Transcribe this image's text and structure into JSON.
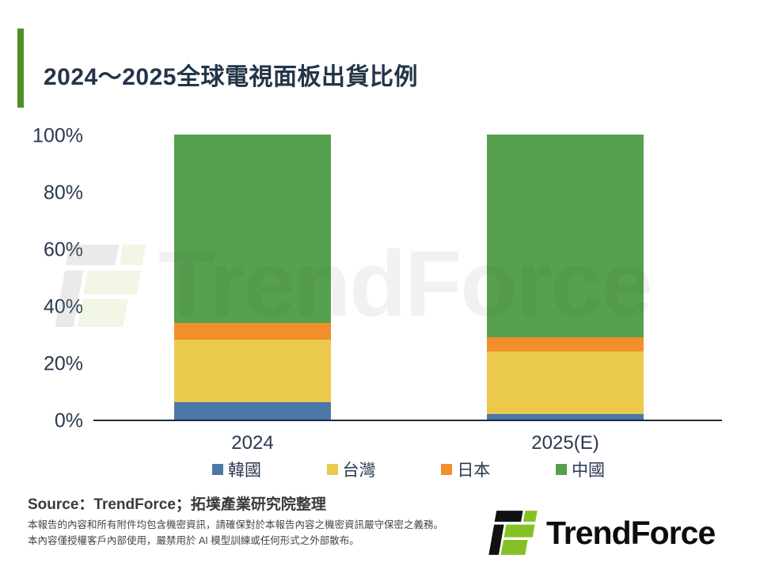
{
  "title": "2024～2025全球電視面板出貨比例",
  "chart_data": {
    "type": "bar",
    "stacked": true,
    "title": "2024～2025全球電視面板出貨比例",
    "categories": [
      "2024",
      "2025(E)"
    ],
    "series": [
      {
        "name": "韓國",
        "color": "#4C77A8",
        "values": [
          6,
          2
        ]
      },
      {
        "name": "台灣",
        "color": "#EBC94D",
        "values": [
          22,
          22
        ]
      },
      {
        "name": "日本",
        "color": "#F28E2B",
        "values": [
          6,
          5
        ]
      },
      {
        "name": "中國",
        "color": "#55A14E",
        "values": [
          66,
          71
        ]
      }
    ],
    "xlabel": "",
    "ylabel": "",
    "ylim": [
      0,
      100
    ],
    "y_ticks": [
      "0%",
      "20%",
      "40%",
      "60%",
      "80%",
      "100%"
    ],
    "grid": false,
    "legend_position": "bottom"
  },
  "watermark": {
    "text": "TrendForce"
  },
  "footer": {
    "source_line": "Source：TrendForce；拓墣產業研究院整理",
    "disclaimer_line1": "本報告的內容和所有附件均包含機密資訊，請確保對於本報告內容之機密資訊嚴守保密之義務。",
    "disclaimer_line2": "本內容僅授權客戶內部使用，嚴禁用於 AI 模型訓練或任何形式之外部散布。",
    "logo_text": "TrendForce"
  },
  "colors": {
    "accent_green": "#4E8F25",
    "title_navy": "#243548",
    "axis_navy": "#2a3950",
    "logo_green": "#85C125",
    "logo_black": "#111111"
  }
}
